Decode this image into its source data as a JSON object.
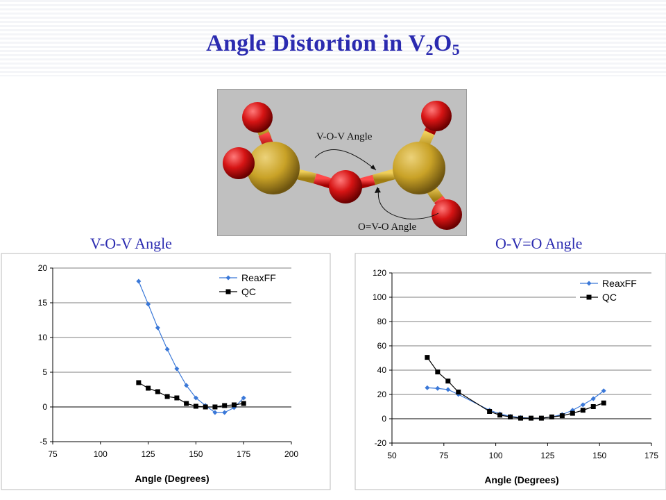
{
  "title": {
    "main": "Angle Distortion in V",
    "sub1": "2",
    "mid": "O",
    "sub2": "5"
  },
  "molecule": {
    "label_vov": "V-O-V Angle",
    "label_ovo": "O=V-O Angle",
    "colors": {
      "vanadium": "#c9a227",
      "oxygen": "#d61414",
      "background": "#c0c0c0"
    }
  },
  "headings": {
    "left": "V-O-V Angle",
    "right": "O-V=O Angle"
  },
  "chart_data": [
    {
      "type": "line",
      "title": "",
      "xlabel": "Angle (Degrees)",
      "ylabel": "",
      "xlim": [
        75,
        200
      ],
      "ylim": [
        -5,
        20
      ],
      "xticks": [
        75,
        100,
        125,
        150,
        175,
        200
      ],
      "yticks": [
        -5,
        0,
        5,
        10,
        15,
        20
      ],
      "legend": "top-right",
      "grid": "horizontal",
      "series": [
        {
          "name": "ReaxFF",
          "color": "#3a78d8",
          "marker": "diamond",
          "x": [
            120,
            125,
            130,
            135,
            140,
            145,
            150,
            155,
            160,
            165,
            170,
            175
          ],
          "y": [
            18.1,
            14.8,
            11.4,
            8.3,
            5.5,
            3.1,
            1.3,
            0.2,
            -0.8,
            -0.8,
            -0.1,
            1.3
          ]
        },
        {
          "name": "QC",
          "color": "#000000",
          "marker": "square",
          "x": [
            120,
            125,
            130,
            135,
            140,
            145,
            150,
            155,
            160,
            165,
            170,
            175
          ],
          "y": [
            3.5,
            2.7,
            2.2,
            1.5,
            1.3,
            0.5,
            0.1,
            0.0,
            0.0,
            0.2,
            0.3,
            0.5
          ]
        }
      ]
    },
    {
      "type": "line",
      "title": "",
      "xlabel": "Angle (Degrees)",
      "ylabel": "",
      "xlim": [
        50,
        175
      ],
      "ylim": [
        -20,
        120
      ],
      "xticks": [
        50,
        75,
        100,
        125,
        150,
        175
      ],
      "yticks": [
        -20,
        0,
        20,
        40,
        60,
        80,
        100,
        120
      ],
      "legend": "top-right",
      "grid": "horizontal",
      "series": [
        {
          "name": "ReaxFF",
          "color": "#3a78d8",
          "marker": "diamond",
          "x": [
            67,
            72,
            77,
            82,
            97,
            102,
            107,
            112,
            117,
            122,
            127,
            132,
            137,
            142,
            147,
            152
          ],
          "y": [
            25.5,
            25,
            24,
            20,
            7,
            4,
            2,
            1,
            0.5,
            0.5,
            1.5,
            3.5,
            7,
            11.5,
            16.5,
            23
          ]
        },
        {
          "name": "QC",
          "color": "#000000",
          "marker": "square",
          "x": [
            67,
            72,
            77,
            82,
            97,
            102,
            107,
            112,
            117,
            122,
            127,
            132,
            137,
            142,
            147,
            152
          ],
          "y": [
            50.5,
            38.5,
            31,
            22,
            6,
            3,
            1.5,
            0.5,
            0.5,
            0.5,
            1.5,
            2.5,
            4.5,
            7,
            10,
            13
          ]
        }
      ]
    }
  ]
}
